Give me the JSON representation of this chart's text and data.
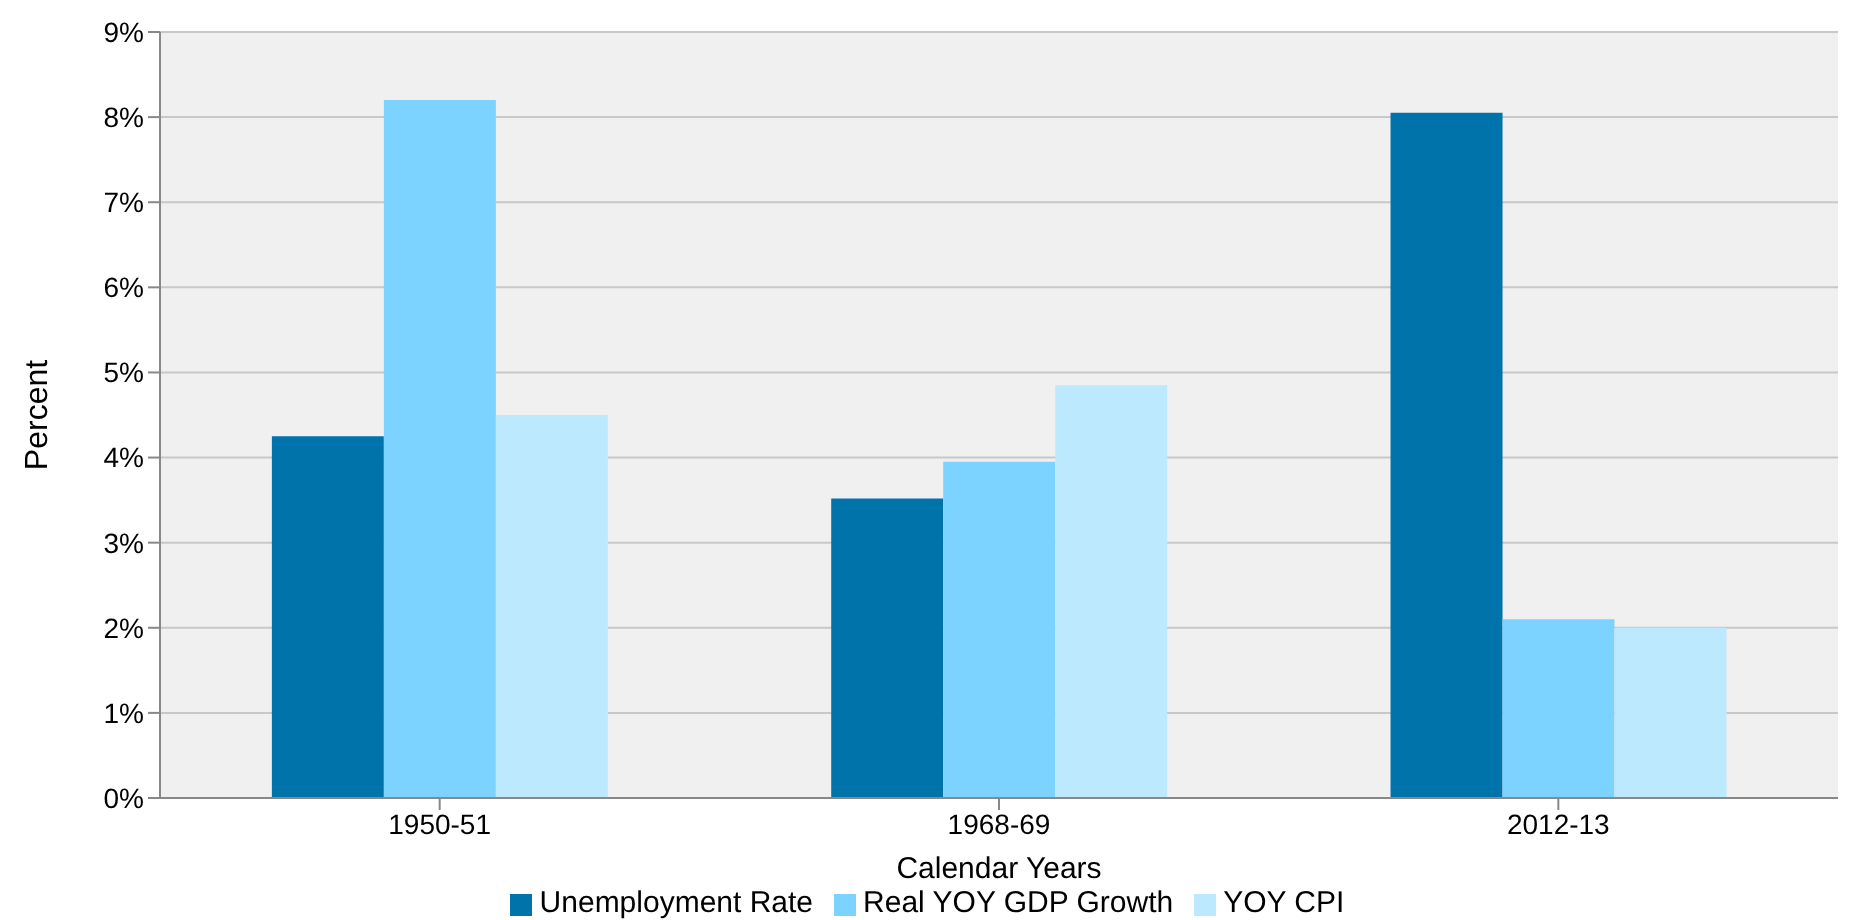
{
  "chart_data": {
    "type": "bar",
    "xlabel": "Calendar Years",
    "ylabel": "Percent",
    "categories": [
      "1950-51",
      "1968-69",
      "2012-13"
    ],
    "series": [
      {
        "name": "Unemployment Rate",
        "color": "#0073aa",
        "values": [
          4.25,
          3.52,
          8.05
        ]
      },
      {
        "name": "Real YOY GDP Growth",
        "color": "#7dd3ff",
        "values": [
          8.2,
          3.95,
          2.1
        ]
      },
      {
        "name": "YOY CPI",
        "color": "#bde9ff",
        "values": [
          4.5,
          4.85,
          2.0
        ]
      }
    ],
    "ylim": [
      0,
      9
    ],
    "yticks": [
      {
        "value": 0,
        "label": "0%"
      },
      {
        "value": 1,
        "label": "1%"
      },
      {
        "value": 2,
        "label": "2%"
      },
      {
        "value": 3,
        "label": "3%"
      },
      {
        "value": 4,
        "label": "4%"
      },
      {
        "value": 5,
        "label": "5%"
      },
      {
        "value": 6,
        "label": "6%"
      },
      {
        "value": 7,
        "label": "7%"
      },
      {
        "value": 8,
        "label": "8%"
      },
      {
        "value": 9,
        "label": "9%"
      }
    ],
    "grid": "y",
    "legend": "bottom"
  }
}
